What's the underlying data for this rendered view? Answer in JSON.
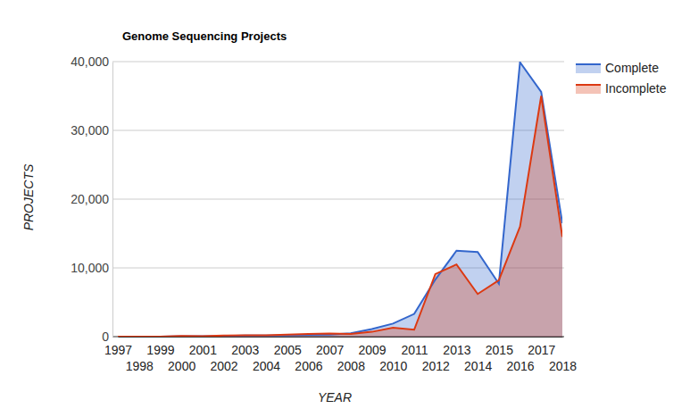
{
  "chart_data": {
    "type": "area",
    "title": "Genome Sequencing Projects",
    "x_label": "YEAR",
    "y_label": "PROJECTS",
    "x": [
      1997,
      1998,
      1999,
      2000,
      2001,
      2002,
      2003,
      2004,
      2005,
      2006,
      2007,
      2008,
      2009,
      2010,
      2011,
      2012,
      2013,
      2014,
      2015,
      2016,
      2017,
      2018
    ],
    "series": [
      {
        "name": "Complete",
        "color": "#3366cc",
        "values": [
          0,
          0,
          0,
          50,
          50,
          100,
          150,
          150,
          200,
          250,
          300,
          500,
          1100,
          1900,
          3300,
          8300,
          12500,
          12300,
          7700,
          39900,
          35600,
          16500
        ]
      },
      {
        "name": "Incomplete",
        "color": "#dc3912",
        "values": [
          0,
          0,
          0,
          100,
          50,
          150,
          200,
          200,
          300,
          400,
          450,
          400,
          700,
          1300,
          1000,
          9100,
          10500,
          6200,
          8200,
          16000,
          35000,
          14500
        ]
      }
    ],
    "xlim": [
      1997,
      2018
    ],
    "xticks": [
      1997,
      1998,
      1999,
      2000,
      2001,
      2002,
      2003,
      2004,
      2005,
      2006,
      2007,
      2008,
      2009,
      2010,
      2011,
      2012,
      2013,
      2014,
      2015,
      2016,
      2017,
      2018
    ],
    "ylim": [
      0,
      40000
    ],
    "yticks": [
      0,
      {
        "value": 10000,
        "label": "10,000"
      },
      {
        "value": 20000,
        "label": "20,000"
      },
      {
        "value": 30000,
        "label": "30,000"
      },
      {
        "value": 40000,
        "label": "40,000"
      }
    ],
    "grid": true,
    "legend": "right"
  }
}
